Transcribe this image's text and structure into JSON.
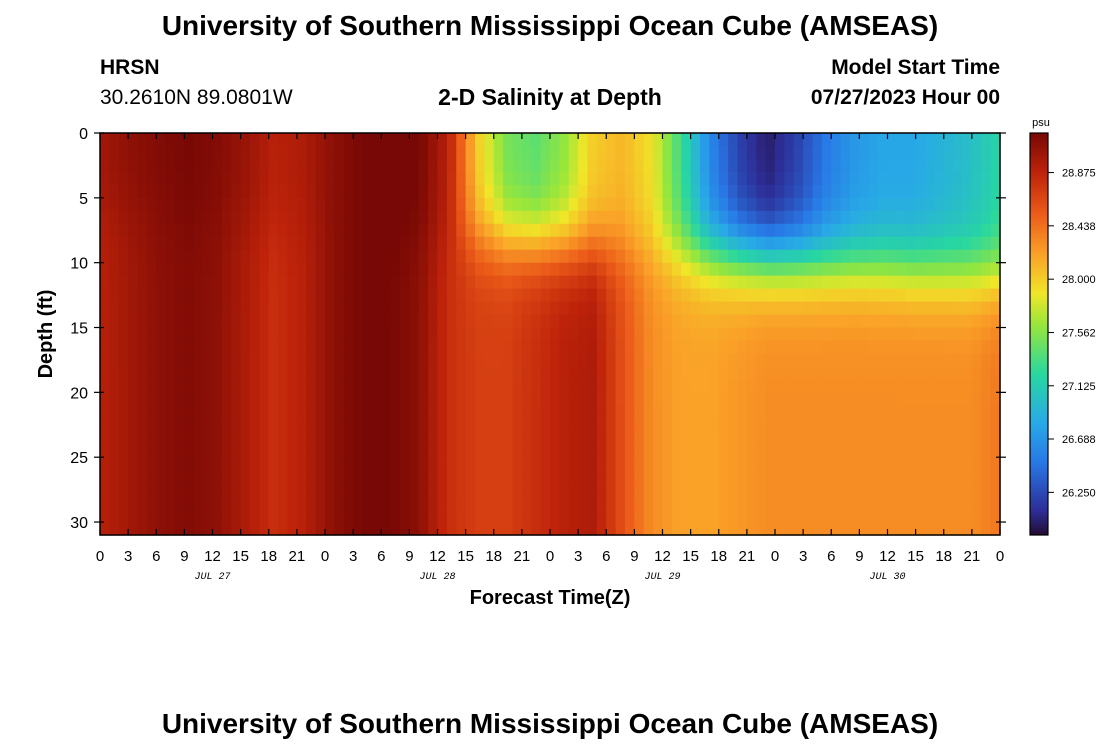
{
  "header": {
    "title": "University of Southern Mississippi Ocean Cube (AMSEAS)",
    "station": "HRSN",
    "coords": "30.2610N  89.0801W",
    "subtitle": "2-D Salinity at Depth",
    "model_start_label": "Model Start Time",
    "model_start_value": "07/27/2023 Hour 00"
  },
  "footer": {
    "title": "University of Southern Mississippi Ocean Cube (AMSEAS)"
  },
  "chart_data": {
    "type": "heatmap",
    "xlabel": "Forecast Time(Z)",
    "ylabel": "Depth (ft)",
    "x_range_hours": [
      0,
      96
    ],
    "y_range_ft": [
      0,
      31
    ],
    "x_ticks": [
      "0",
      "3",
      "6",
      "9",
      "12",
      "15",
      "18",
      "21",
      "0",
      "3",
      "6",
      "9",
      "12",
      "15",
      "18",
      "21",
      "0",
      "3",
      "6",
      "9",
      "12",
      "15",
      "18",
      "21",
      "0",
      "3",
      "6",
      "9",
      "12",
      "15",
      "18",
      "21",
      "0"
    ],
    "y_ticks": [
      0,
      5,
      10,
      15,
      20,
      25,
      30
    ],
    "day_labels": [
      {
        "label": "JUL 27",
        "hour": 12
      },
      {
        "label": "JUL 28",
        "hour": 36
      },
      {
        "label": "JUL 29",
        "hour": 60
      },
      {
        "label": "JUL 30",
        "hour": 84
      }
    ],
    "colorbar": {
      "unit": "psu",
      "range": [
        25.9,
        29.2
      ],
      "ticks": [
        28.875,
        28.438,
        28.0,
        27.562,
        27.125,
        26.688,
        26.25
      ],
      "tick_labels": [
        "28.875",
        "28.438",
        "28.000",
        "27.562",
        "27.125",
        "26.688",
        "26.250"
      ]
    },
    "surface_salinity_psu": [
      29.0,
      29.1,
      29.15,
      29.2,
      29.15,
      29.05,
      28.9,
      28.95,
      29.1,
      29.2,
      29.25,
      29.2,
      28.9,
      28.0,
      27.5,
      27.4,
      27.6,
      28.0,
      28.1,
      27.9,
      27.3,
      26.6,
      26.2,
      26.0,
      26.2,
      26.5,
      26.7,
      26.8,
      26.8,
      26.9,
      27.0,
      27.2
    ],
    "deep_salinity_psu": [
      28.9,
      29.0,
      29.1,
      29.15,
      29.1,
      28.95,
      28.8,
      28.9,
      29.1,
      29.2,
      29.2,
      29.1,
      28.8,
      28.7,
      28.7,
      28.8,
      28.9,
      28.95,
      28.6,
      28.3,
      28.2,
      28.2,
      28.25,
      28.3,
      28.3,
      28.3,
      28.3,
      28.3,
      28.3,
      28.3,
      28.3,
      28.4
    ]
  },
  "colors": {
    "frame": "#000000",
    "background": "#ffffff"
  }
}
